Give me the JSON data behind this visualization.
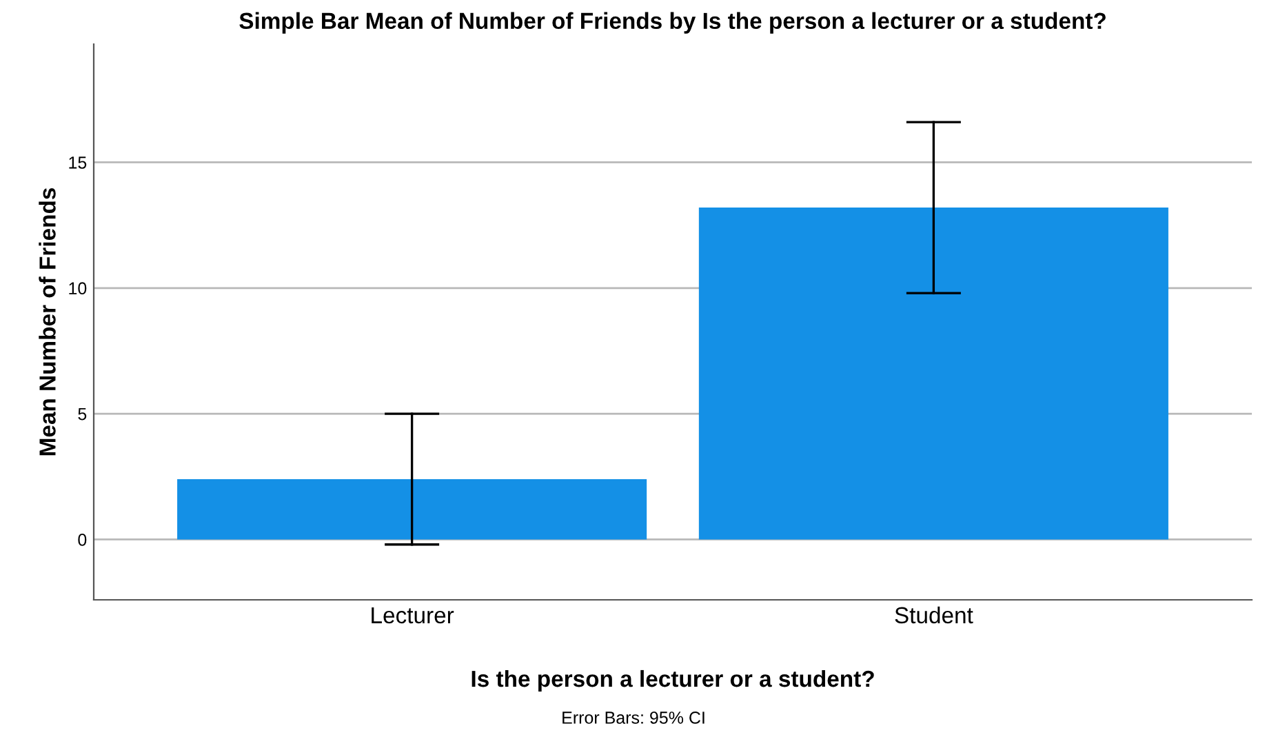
{
  "chart_data": {
    "type": "bar",
    "title": "Simple Bar Mean of Number of Friends by Is the person a lecturer or a student?",
    "xlabel": "Is the person a lecturer or a student?",
    "ylabel": "Mean Number of Friends",
    "annotations": [
      "Error Bars: 95% CI"
    ],
    "categories": [
      "Lecturer",
      "Student"
    ],
    "values": [
      2.4,
      13.2
    ],
    "color": "#1490e6",
    "errors": [
      [
        -0.2,
        5.0
      ],
      [
        9.8,
        16.6
      ]
    ],
    "ylim": [
      -2.4,
      19.7
    ],
    "yticks": [
      0,
      5,
      10,
      15
    ],
    "grid": "y"
  }
}
